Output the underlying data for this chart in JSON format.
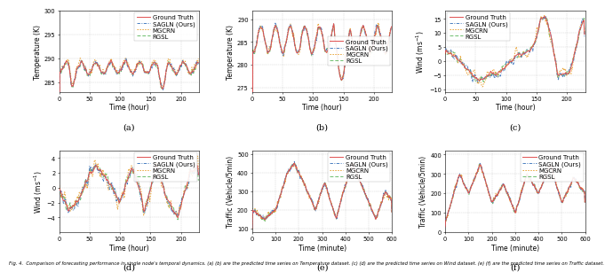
{
  "figure_title": "Fig. 4.  Comparison of forecasting performance in single node's temporal dynamics. (a) (b) are the predicted time series on Temperature dataset. (c) (d) are the predicted time series on Wind dataset. (e) (f) are the predicted time series on Traffic dataset.",
  "subplots": [
    {
      "label": "(a)",
      "ylabel": "Temperature (K)",
      "xlabel": "Time (hour)",
      "ylim": [
        283,
        300
      ],
      "xlim": [
        0,
        230
      ],
      "yticks": [
        285,
        290,
        295,
        300
      ],
      "xticks": [
        0,
        50,
        100,
        150,
        200
      ],
      "legend_loc": "upper right"
    },
    {
      "label": "(b)",
      "ylabel": "Temperature (K)",
      "xlabel": "Time (hour)",
      "ylim": [
        274,
        292
      ],
      "xlim": [
        0,
        230
      ],
      "yticks": [
        275,
        280,
        285,
        290
      ],
      "xticks": [
        0,
        50,
        100,
        150,
        200
      ],
      "legend_loc": "center right"
    },
    {
      "label": "(c)",
      "ylabel": "Wind (ms$^{-1}$)",
      "xlabel": "Time (hour)",
      "ylim": [
        -11,
        18
      ],
      "xlim": [
        0,
        230
      ],
      "yticks": [
        -10,
        -5,
        0,
        5,
        10,
        15
      ],
      "xticks": [
        0,
        50,
        100,
        150,
        200
      ],
      "legend_loc": "upper left"
    },
    {
      "label": "(d)",
      "ylabel": "Wind (ms$^{-1}$)",
      "xlabel": "Time (hour)",
      "ylim": [
        -6,
        5
      ],
      "xlim": [
        0,
        230
      ],
      "yticks": [
        -4,
        -2,
        0,
        2,
        4
      ],
      "xticks": [
        0,
        50,
        100,
        150,
        200
      ],
      "legend_loc": "upper right"
    },
    {
      "label": "(e)",
      "ylabel": "Traffic (Vehicle/5min)",
      "xlabel": "Time (minute)",
      "ylim": [
        80,
        520
      ],
      "xlim": [
        0,
        600
      ],
      "yticks": [
        100,
        200,
        300,
        400,
        500
      ],
      "xticks": [
        0,
        100,
        200,
        300,
        400,
        500,
        600
      ],
      "legend_loc": "upper right"
    },
    {
      "label": "(f)",
      "ylabel": "Traffic (Vehicle/5min)",
      "xlabel": "Time (minute)",
      "ylim": [
        0,
        420
      ],
      "xlim": [
        0,
        600
      ],
      "yticks": [
        0,
        100,
        200,
        300,
        400
      ],
      "xticks": [
        0,
        100,
        200,
        300,
        400,
        500,
        600
      ],
      "legend_loc": "upper right"
    }
  ],
  "series_names": [
    "Ground Truth",
    "SAGLN (Ours)",
    "MGCRN",
    "RGSL"
  ],
  "series_colors": [
    "#e05050",
    "#4a7fc1",
    "#e8a030",
    "#6dbe6d"
  ],
  "legend_fontsize": 5.0,
  "axis_fontsize": 5.5,
  "tick_fontsize": 4.8,
  "sublabel_fontsize": 7.0
}
